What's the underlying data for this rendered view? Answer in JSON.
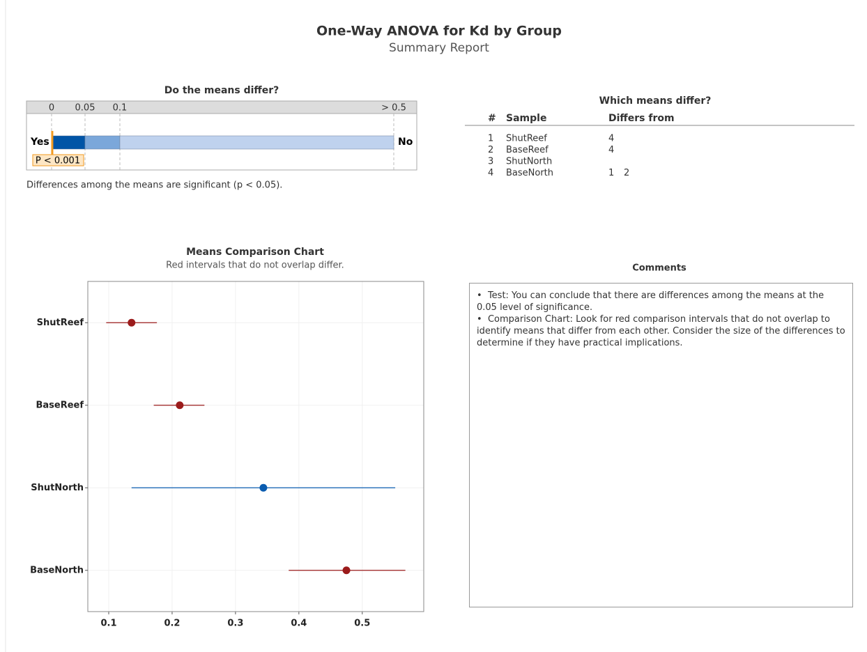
{
  "header": {
    "title": "One-Way ANOVA for Kd by Group",
    "subtitle": "Summary Report"
  },
  "chart_data": [
    {
      "type": "pvalue-bar",
      "title": "Do the means differ?",
      "xticks": [
        0,
        0.05,
        0.1,
        {
          "value": 0.5,
          "label": "> 0.5"
        }
      ],
      "xlim": [
        0,
        0.5
      ],
      "left_label": "Yes",
      "right_label": "No",
      "values": [
        0.001
      ],
      "value_labels": [
        "P < 0.001"
      ],
      "band_colors": [
        "#0054a6",
        "#7ba7da",
        "#bfd2ee"
      ],
      "marker_color": "#f29a1f",
      "note": "Differences among the means are significant (p < 0.05)."
    },
    {
      "type": "interval",
      "title": "Means Comparison Chart",
      "subtitle": "Red intervals that do not overlap differ.",
      "categories": [
        "ShutReef",
        "BaseReef",
        "ShutNorth",
        "BaseNorth"
      ],
      "values": [
        0.136,
        0.212,
        0.344,
        0.475
      ],
      "lower": [
        0.096,
        0.171,
        0.136,
        0.384
      ],
      "upper": [
        0.176,
        0.251,
        0.552,
        0.568
      ],
      "colors": [
        "#9b1b1b",
        "#9b1b1b",
        "#0a5cb0",
        "#9b1b1b"
      ],
      "xlim": [
        0.067,
        0.597
      ],
      "xticks": [
        0.1,
        0.2,
        0.3,
        0.4,
        0.5
      ],
      "grid": true
    }
  ],
  "table": {
    "title": "Which means differ?",
    "columns": [
      "#",
      "Sample",
      "Differs from"
    ],
    "rows": [
      [
        "1",
        "ShutReef",
        [
          "4"
        ]
      ],
      [
        "2",
        "BaseReef",
        [
          "4"
        ]
      ],
      [
        "3",
        "ShutNorth",
        []
      ],
      [
        "4",
        "BaseNorth",
        [
          "1",
          "2"
        ]
      ]
    ]
  },
  "comments": {
    "title": "Comments",
    "items": [
      "Test: You can conclude that there are differences among the means at the 0.05 level of significance.",
      "Comparison Chart: Look for red comparison intervals that do not overlap to identify means that differ from each other. Consider the size of the differences to determine if they have practical implications."
    ]
  }
}
